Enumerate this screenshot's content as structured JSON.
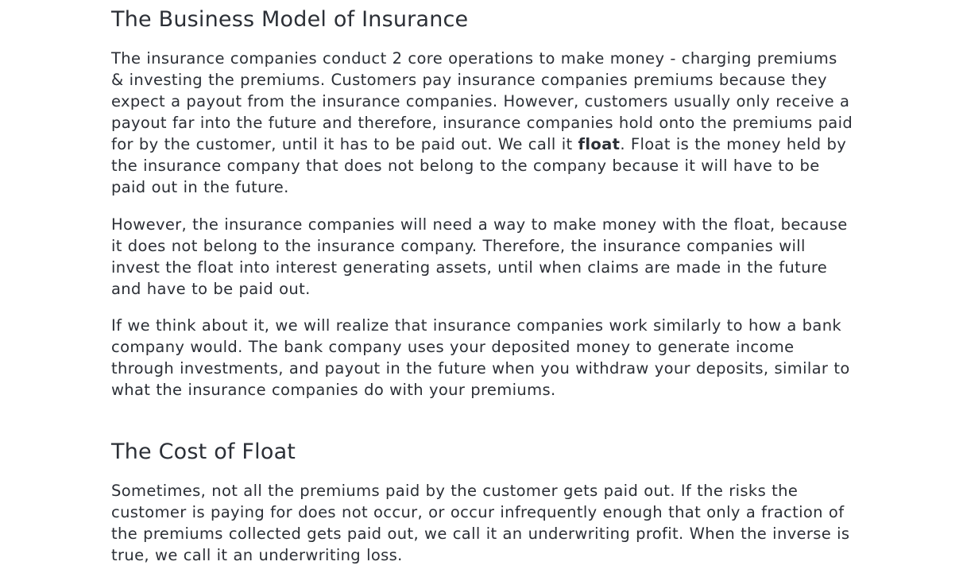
{
  "sections": [
    {
      "heading": "The Business Model of Insurance",
      "paragraphs": {
        "p1_before": "The insurance companies conduct 2 core operations to make money - charging premiums & investing the premiums. Customers pay insurance companies premiums because they expect a payout from the insurance companies. However, customers usually only receive a payout far into the future and therefore, insurance companies hold onto the premiums paid for by the customer, until it has to be paid out. We call it ",
        "p1_bold": "float",
        "p1_after": ". Float is the money held by the insurance company that does not belong to the company because it will have to be paid out in the future.",
        "p2": "However, the insurance companies will need a way to make money with the float, because it does not belong to the insurance company. Therefore, the insurance companies will invest the float into interest generating assets, until when claims are made in the future and have to be paid out.",
        "p3": "If we think about it, we will realize that insurance companies work similarly to how a bank company would. The bank company uses your deposited money to generate income through investments, and payout in the future when you withdraw your deposits, similar to what the insurance companies do with your premiums."
      }
    },
    {
      "heading": "The Cost of Float",
      "paragraphs": {
        "p1": "Sometimes, not all the premiums paid by the customer gets paid out. If the risks the customer is paying for does not occur, or occur infrequently enough that only a fraction of the premiums collected gets paid out, we call it an underwriting profit. When the inverse is true, we call it an underwriting loss."
      }
    }
  ]
}
